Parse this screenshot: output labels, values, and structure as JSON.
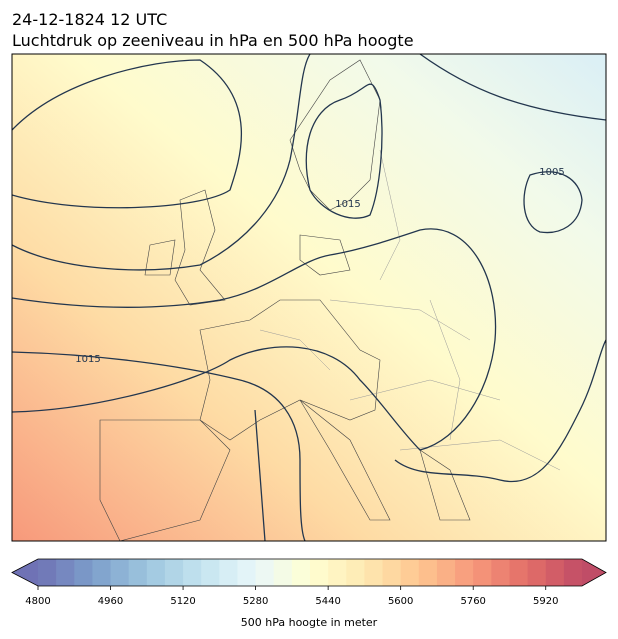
{
  "title": "24-12-1824 12 UTC",
  "subtitle": "Luchtdruk op zeeniveau in hPa en 500 hPa hoogte",
  "map": {
    "contour_labels": [
      "1015",
      "1005",
      "1015"
    ]
  },
  "colorbar": {
    "range": [
      4800,
      6000
    ],
    "ticks": [
      4800,
      4960,
      5120,
      5280,
      5440,
      5600,
      5760,
      5920
    ],
    "label": "500 hPa hoogte in meter",
    "colormap": [
      "#313695",
      "#4575b4",
      "#74add1",
      "#abd9e9",
      "#e0f3f8",
      "#ffffbf",
      "#fee090",
      "#fdae61",
      "#f46d43",
      "#d73027",
      "#a50026"
    ],
    "alpha": 0.7
  }
}
